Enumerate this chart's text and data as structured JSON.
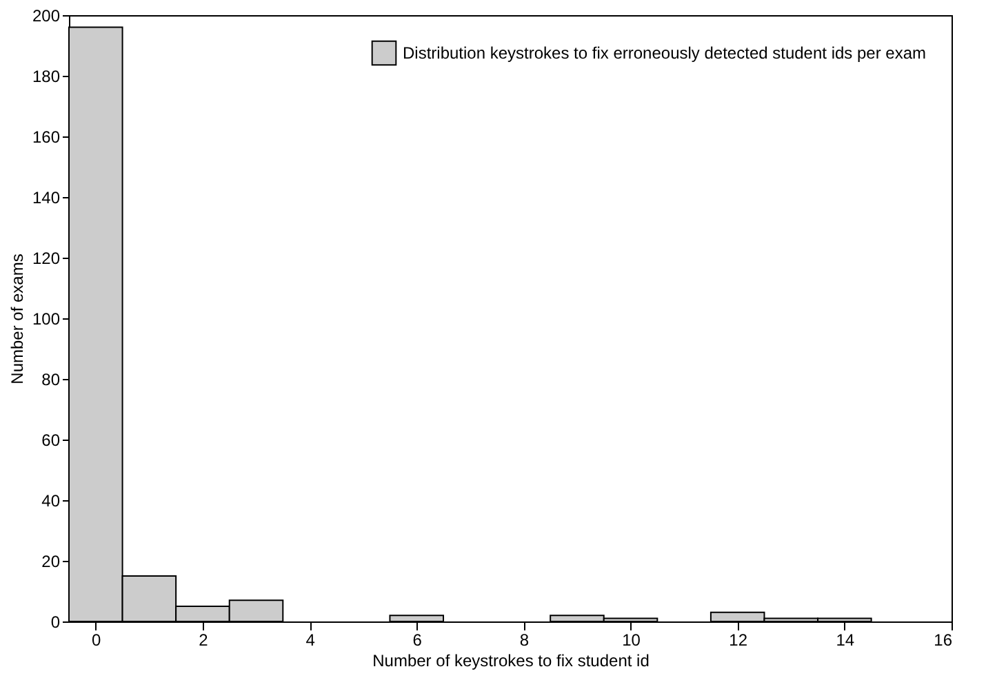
{
  "chart_data": {
    "type": "histogram",
    "xlabel": "Number of keystrokes to fix student id",
    "ylabel": "Number of exams",
    "bins": [
      -0.5,
      0.5,
      1.5,
      2.5,
      3.5,
      4.5,
      5.5,
      6.5,
      7.5,
      8.5,
      9.5,
      10.5,
      11.5,
      12.5,
      13.5,
      14.5,
      15.5
    ],
    "series": [
      {
        "name": "Distribution keystrokes to fix erroneously detected student ids per exam",
        "color": "#cccccc",
        "values": [
          196,
          15,
          5,
          7,
          0,
          0,
          2,
          0,
          0,
          2,
          1,
          0,
          3,
          1,
          1,
          0
        ]
      }
    ],
    "xlim": [
      -0.5,
      16
    ],
    "xticks": [
      0,
      2,
      4,
      6,
      8,
      10,
      12,
      14,
      16
    ],
    "ylim": [
      0,
      200
    ],
    "yticks": [
      0,
      20,
      40,
      60,
      80,
      100,
      120,
      140,
      160,
      180,
      200
    ],
    "grid": false,
    "legend": "top right"
  }
}
